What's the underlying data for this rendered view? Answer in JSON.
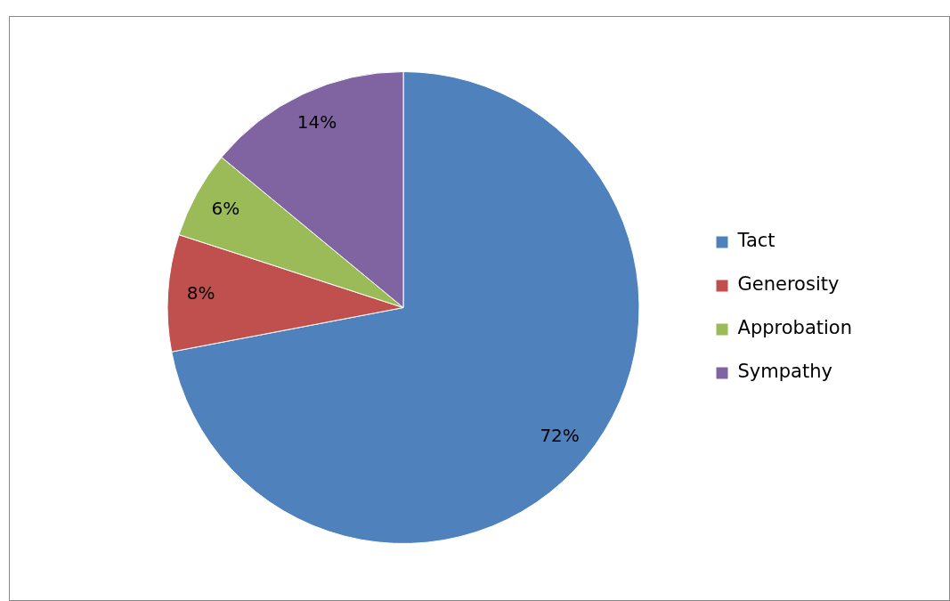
{
  "chart_data": {
    "type": "pie",
    "categories": [
      "Tact",
      "Generosity",
      "Approbation",
      "Sympathy"
    ],
    "values": [
      72,
      8,
      6,
      14
    ],
    "colors": [
      "#4f81bd",
      "#c0504d",
      "#9bbb59",
      "#8064a2"
    ],
    "value_labels": [
      "72%",
      "8%",
      "6%",
      "14%"
    ],
    "legend": "right"
  }
}
